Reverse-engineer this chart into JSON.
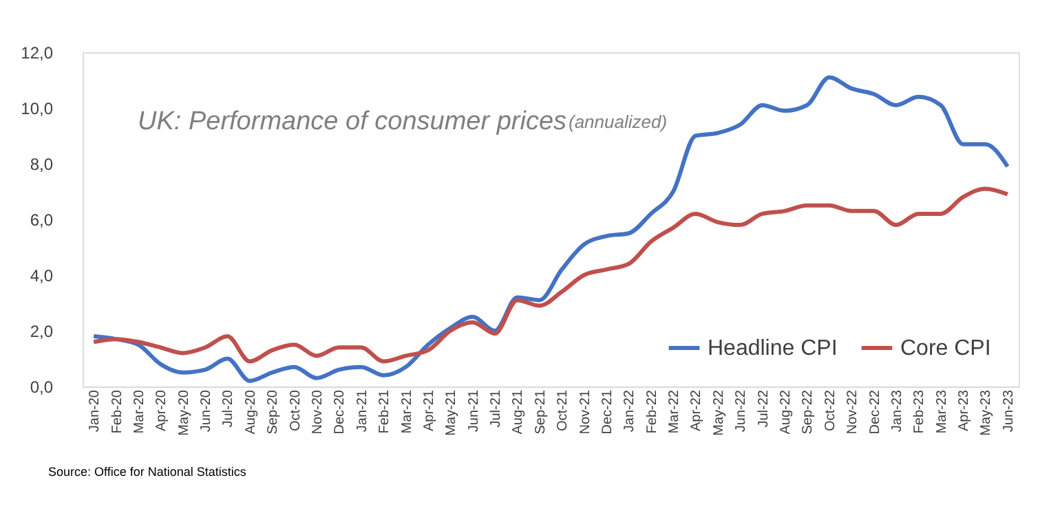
{
  "chart_data": {
    "type": "line",
    "title": "UK: Performance of consumer prices",
    "subtitle": "(annualized)",
    "categories": [
      "Jan-20",
      "Feb-20",
      "Mar-20",
      "Apr-20",
      "May-20",
      "Jun-20",
      "Jul-20",
      "Aug-20",
      "Sep-20",
      "Oct-20",
      "Nov-20",
      "Dec-20",
      "Jan-21",
      "Feb-21",
      "Mar-21",
      "Apr-21",
      "May-21",
      "Jun-21",
      "Jul-21",
      "Aug-21",
      "Sep-21",
      "Oct-21",
      "Nov-21",
      "Dec-21",
      "Jan-22",
      "Feb-22",
      "Mar-22",
      "Apr-22",
      "May-22",
      "Jun-22",
      "Jul-22",
      "Aug-22",
      "Sep-22",
      "Oct-22",
      "Nov-22",
      "Dec-22",
      "Jan-23",
      "Feb-23",
      "Mar-23",
      "Apr-23",
      "May-23",
      "Jun-23"
    ],
    "series": [
      {
        "name": "Headline CPI",
        "color": "#4472c4",
        "values": [
          1.8,
          1.7,
          1.5,
          0.8,
          0.5,
          0.6,
          1.0,
          0.2,
          0.5,
          0.7,
          0.3,
          0.6,
          0.7,
          0.4,
          0.7,
          1.5,
          2.1,
          2.5,
          2.0,
          3.2,
          3.1,
          4.2,
          5.1,
          5.4,
          5.5,
          6.2,
          7.0,
          9.0,
          9.1,
          9.4,
          10.1,
          9.9,
          10.1,
          11.1,
          10.7,
          10.5,
          10.1,
          10.4,
          10.1,
          8.7,
          8.7,
          7.9
        ]
      },
      {
        "name": "Core CPI",
        "color": "#c0504d",
        "values": [
          1.6,
          1.7,
          1.6,
          1.4,
          1.2,
          1.4,
          1.8,
          0.9,
          1.3,
          1.5,
          1.1,
          1.4,
          1.4,
          0.9,
          1.1,
          1.3,
          2.0,
          2.3,
          1.9,
          3.1,
          2.9,
          3.4,
          4.0,
          4.2,
          4.4,
          5.2,
          5.7,
          6.2,
          5.9,
          5.8,
          6.2,
          6.3,
          6.5,
          6.5,
          6.3,
          6.3,
          5.8,
          6.2,
          6.2,
          6.8,
          7.1,
          6.9
        ]
      }
    ],
    "ylim": [
      0,
      12
    ],
    "yticks": [
      {
        "value": 0,
        "label": "0,0"
      },
      {
        "value": 2,
        "label": "2,0"
      },
      {
        "value": 4,
        "label": "4,0"
      },
      {
        "value": 6,
        "label": "6,0"
      },
      {
        "value": 8,
        "label": "8,0"
      },
      {
        "value": 10,
        "label": "10,0"
      },
      {
        "value": 12,
        "label": "12,0"
      }
    ],
    "grid": false,
    "legend": "bottom right",
    "marker": "none",
    "line_style": "solid",
    "annotations": [
      "Source: Office for National Statistics"
    ]
  }
}
